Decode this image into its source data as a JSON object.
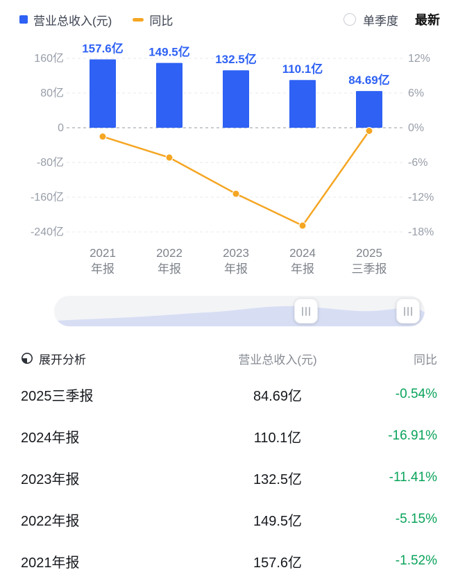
{
  "colors": {
    "bar_blue": "#2e61f4",
    "line_orange": "#f5a623",
    "negative_green": "#09a35a"
  },
  "legend": {
    "revenue_label": "营业总收入(元)",
    "yoy_label": "同比"
  },
  "controls": {
    "single_quarter": "单季度",
    "latest": "最新"
  },
  "chart_data": {
    "type": "bar+line",
    "categories": [
      [
        "2021",
        "年报"
      ],
      [
        "2022",
        "年报"
      ],
      [
        "2023",
        "年报"
      ],
      [
        "2024",
        "年报"
      ],
      [
        "2025",
        "三季报"
      ]
    ],
    "bar_series": {
      "name": "营业总收入(元)",
      "unit": "亿",
      "values": [
        157.6,
        149.5,
        132.5,
        110.1,
        84.69
      ],
      "labels": [
        "157.6亿",
        "149.5亿",
        "132.5亿",
        "110.1亿",
        "84.69亿"
      ]
    },
    "line_series": {
      "name": "同比",
      "unit": "%",
      "values": [
        -1.52,
        -5.15,
        -11.41,
        -16.91,
        -0.54
      ]
    },
    "left_axis": {
      "ticks": [
        "160亿",
        "80亿",
        "0",
        "-80亿",
        "-160亿",
        "-240亿"
      ],
      "values": [
        160,
        80,
        0,
        -80,
        -160,
        -240
      ],
      "max": 160,
      "min": -240
    },
    "right_axis": {
      "ticks": [
        "12%",
        "6%",
        "0%",
        "-6%",
        "-12%",
        "-18%"
      ],
      "values": [
        12,
        6,
        0,
        -6,
        -12,
        -18
      ],
      "max": 12,
      "min": -18
    },
    "grid": "dashed",
    "legend_position": "top-left"
  },
  "slider": {
    "left_handle_icon": "grip-icon",
    "right_handle_icon": "grip-icon"
  },
  "analysis_table": {
    "expand_label": "展开分析",
    "col_revenue": "营业总收入(元)",
    "col_yoy": "同比",
    "rows": [
      {
        "period": "2025三季报",
        "revenue": "84.69亿",
        "yoy": "-0.54%"
      },
      {
        "period": "2024年报",
        "revenue": "110.1亿",
        "yoy": "-16.91%"
      },
      {
        "period": "2023年报",
        "revenue": "132.5亿",
        "yoy": "-11.41%"
      },
      {
        "period": "2022年报",
        "revenue": "149.5亿",
        "yoy": "-5.15%"
      },
      {
        "period": "2021年报",
        "revenue": "157.6亿",
        "yoy": "-1.52%"
      }
    ]
  }
}
